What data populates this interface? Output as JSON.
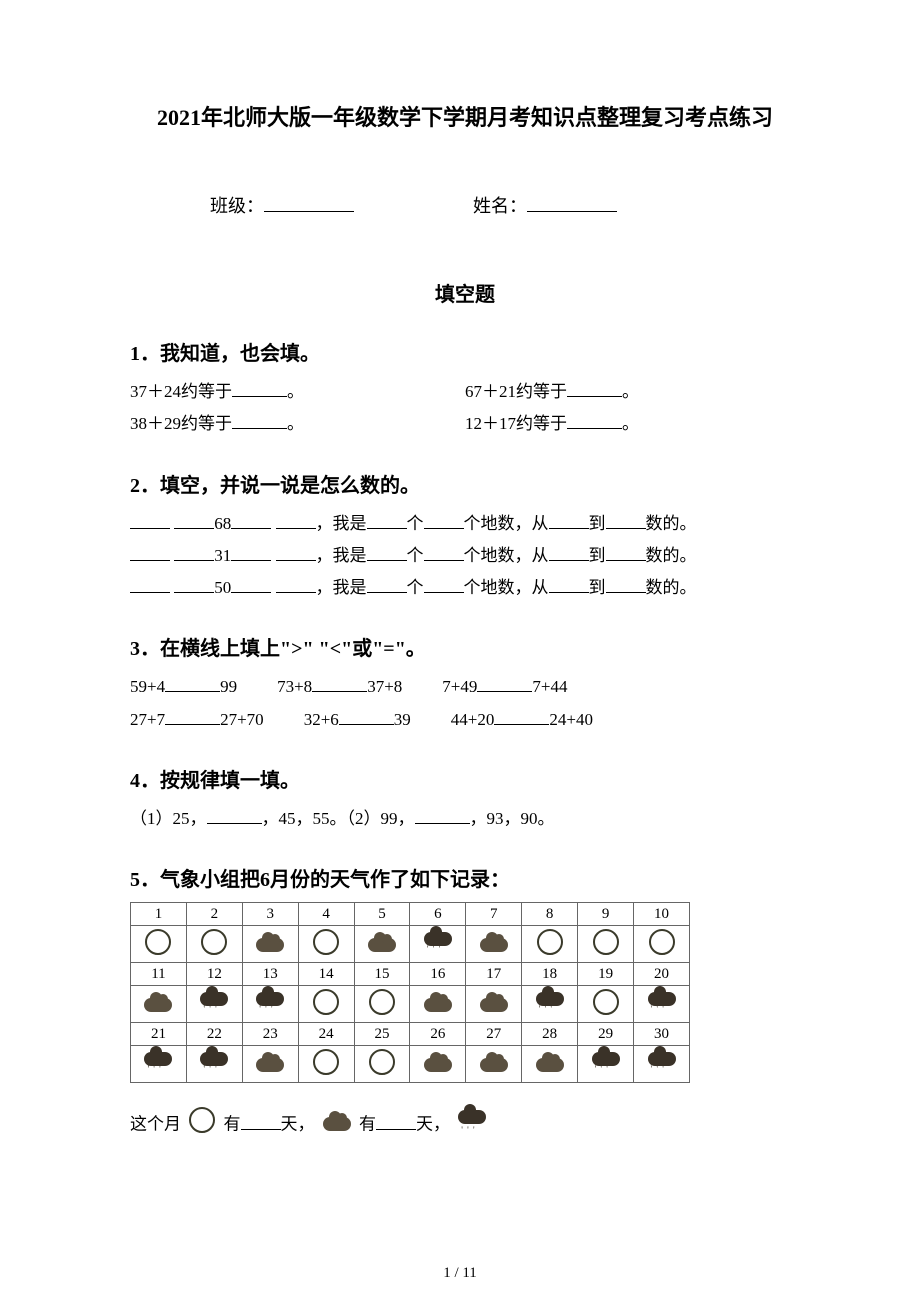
{
  "title": "2021年北师大版一年级数学下学期月考知识点整理复习考点练习",
  "info": {
    "class_label": "班级：",
    "name_label": "姓名："
  },
  "section_heading": "填空题",
  "q1": {
    "heading": "1．我知道，也会填。",
    "rows": [
      {
        "left": "37＋24约等于",
        "right": "67＋21约等于"
      },
      {
        "left": "38＋29约等于",
        "right": "12＋17约等于"
      }
    ],
    "period": "。"
  },
  "q2": {
    "heading": "2．填空，并说一说是怎么数的。",
    "lines": [
      {
        "mid": "68",
        "txt1": "，我是",
        "txt2": "个",
        "txt3": "个地数，从",
        "txt4": "到",
        "txt5": "数的。"
      },
      {
        "mid": "31",
        "txt1": "，我是",
        "txt2": "个",
        "txt3": "个地数，从",
        "txt4": "到",
        "txt5": "数的。"
      },
      {
        "mid": "50",
        "txt1": "，我是",
        "txt2": "个",
        "txt3": "个地数，从",
        "txt4": "到",
        "txt5": "数的。"
      }
    ]
  },
  "q3": {
    "heading": "3．在横线上填上\">\" \"<\"或\"=\"。",
    "lines": [
      [
        "59+4",
        "99",
        "73+8",
        "37+8",
        "7+49",
        "7+44"
      ],
      [
        "27+7",
        "27+70",
        "32+6",
        "39",
        "44+20",
        "24+40"
      ]
    ]
  },
  "q4": {
    "heading": "4．按规律填一填。",
    "line": {
      "p1": "（1）25，",
      "p2": "，45，55。（2）99，",
      "p3": "，93，90。"
    }
  },
  "q5": {
    "heading": "5．气象小组把6月份的天气作了如下记录：",
    "days": [
      "1",
      "2",
      "3",
      "4",
      "5",
      "6",
      "7",
      "8",
      "9",
      "10",
      "11",
      "12",
      "13",
      "14",
      "15",
      "16",
      "17",
      "18",
      "19",
      "20",
      "21",
      "22",
      "23",
      "24",
      "25",
      "26",
      "27",
      "28",
      "29",
      "30"
    ],
    "weather": [
      "sun",
      "sun",
      "cloud",
      "sun",
      "cloud",
      "rain",
      "cloud",
      "sun",
      "sun",
      "sun",
      "cloud",
      "rain",
      "rain",
      "sun",
      "sun",
      "cloud",
      "cloud",
      "rain",
      "sun",
      "rain",
      "rain",
      "rain",
      "cloud",
      "sun",
      "sun",
      "cloud",
      "cloud",
      "cloud",
      "rain",
      "rain"
    ],
    "summary": {
      "pre": "这个月",
      "has": "有",
      "days_word": "天，"
    }
  },
  "footer": "1 / 11"
}
